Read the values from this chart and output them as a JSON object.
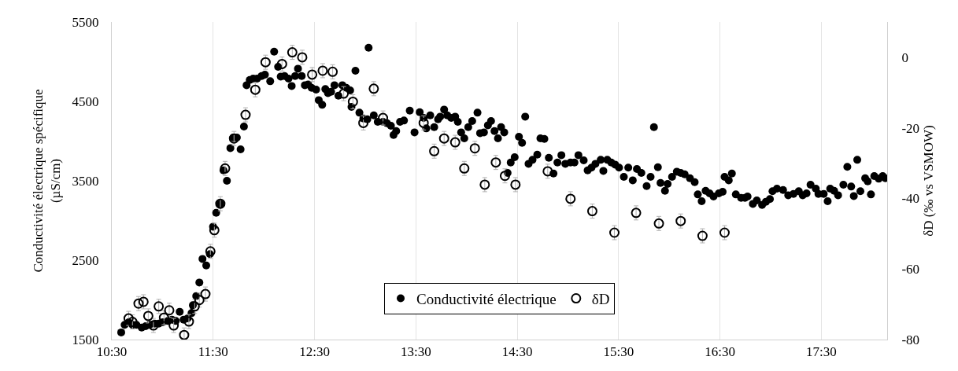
{
  "chart_data": {
    "type": "scatter",
    "ylabel": "Conductivité électrique spécifique\n(µS/cm)",
    "y2label": "δD (‰ vs VSMOW)",
    "xlim": [
      10.5,
      18.15
    ],
    "xticks": [
      {
        "value": 10.5,
        "label": "10:30"
      },
      {
        "value": 11.5,
        "label": "11:30"
      },
      {
        "value": 12.5,
        "label": "12:30"
      },
      {
        "value": 13.5,
        "label": "13:30"
      },
      {
        "value": 14.5,
        "label": "14:30"
      },
      {
        "value": 15.5,
        "label": "15:30"
      },
      {
        "value": 16.5,
        "label": "16:30"
      },
      {
        "value": 17.5,
        "label": "17:30"
      }
    ],
    "ylim": [
      1500,
      5500
    ],
    "yticks": [
      1500,
      2500,
      3500,
      4500,
      5500
    ],
    "y2lim": [
      -80,
      10
    ],
    "y2ticks": [
      -80,
      -60,
      -40,
      -20,
      0
    ],
    "grid": "x",
    "legend": "bottom",
    "series": [
      {
        "name": "Conductivité électrique",
        "color": "#000000",
        "marker": "circle",
        "x": [
          10.593,
          10.627,
          10.666,
          10.704,
          10.743,
          10.795,
          10.834,
          10.873,
          10.924,
          10.963,
          11.002,
          11.054,
          11.093,
          11.131,
          11.17,
          11.209,
          11.248,
          11.287,
          11.3,
          11.333,
          11.364,
          11.395,
          11.432,
          11.468,
          11.499,
          11.53,
          11.571,
          11.602,
          11.636,
          11.67,
          11.701,
          11.734,
          11.771,
          11.804,
          11.83,
          11.861,
          11.895,
          11.934,
          11.978,
          12.011,
          12.063,
          12.102,
          12.141,
          12.167,
          12.205,
          12.244,
          12.275,
          12.309,
          12.337,
          12.374,
          12.405,
          12.438,
          12.472,
          12.516,
          12.542,
          12.576,
          12.607,
          12.633,
          12.664,
          12.697,
          12.736,
          12.775,
          12.814,
          12.852,
          12.865,
          12.904,
          12.943,
          12.982,
          13.021,
          13.034,
          13.085,
          13.124,
          13.176,
          13.215,
          13.254,
          13.28,
          13.306,
          13.344,
          13.383,
          13.44,
          13.487,
          13.538,
          13.577,
          13.603,
          13.642,
          13.681,
          13.719,
          13.74,
          13.779,
          13.81,
          13.849,
          13.888,
          13.914,
          13.947,
          13.978,
          14.017,
          14.056,
          14.108,
          14.134,
          14.172,
          14.211,
          14.242,
          14.276,
          14.31,
          14.341,
          14.372,
          14.405,
          14.436,
          14.475,
          14.517,
          14.548,
          14.579,
          14.612,
          14.651,
          14.698,
          14.729,
          14.768,
          14.812,
          14.858,
          14.897,
          14.936,
          14.975,
          15.026,
          15.065,
          15.104,
          15.156,
          15.195,
          15.233,
          15.272,
          15.324,
          15.35,
          15.389,
          15.428,
          15.466,
          15.505,
          15.552,
          15.596,
          15.64,
          15.681,
          15.725,
          15.777,
          15.816,
          15.849,
          15.888,
          15.914,
          15.958,
          15.984,
          16.028,
          16.075,
          16.113,
          16.152,
          16.204,
          16.251,
          16.282,
          16.32,
          16.359,
          16.398,
          16.437,
          16.489,
          16.527,
          16.546,
          16.587,
          16.618,
          16.657,
          16.709,
          16.747,
          16.773,
          16.825,
          16.864,
          16.916,
          16.954,
          16.993,
          17.019,
          17.063,
          17.123,
          17.174,
          17.226,
          17.278,
          17.317,
          17.355,
          17.394,
          17.446,
          17.472,
          17.524,
          17.563,
          17.588,
          17.627,
          17.666,
          17.718,
          17.757,
          17.795,
          17.821,
          17.855,
          17.886,
          17.933,
          17.958,
          17.99,
          18.023,
          18.067,
          18.106,
          18.132
        ],
        "values": [
          1590,
          1685,
          1718,
          1685,
          1685,
          1652,
          1668,
          1685,
          1701,
          1701,
          1718,
          1734,
          1751,
          1734,
          1850,
          1751,
          1767,
          1833,
          1932,
          2048,
          2219,
          2516,
          2434,
          2576,
          2922,
          3097,
          3209,
          3632,
          3500,
          3912,
          4044,
          4044,
          3896,
          4183,
          4704,
          4770,
          4787,
          4787,
          4820,
          4836,
          4754,
          5127,
          4935,
          4813,
          4820,
          4787,
          4694,
          4820,
          4912,
          4820,
          4704,
          4714,
          4671,
          4648,
          4516,
          4457,
          4655,
          4605,
          4622,
          4704,
          4572,
          4704,
          4671,
          4638,
          4430,
          4886,
          4358,
          4285,
          4275,
          5176,
          4325,
          4242,
          4242,
          4226,
          4193,
          4077,
          4127,
          4242,
          4259,
          4384,
          4110,
          4364,
          4292,
          4160,
          4325,
          4176,
          4275,
          4308,
          4397,
          4325,
          4292,
          4308,
          4242,
          4110,
          4034,
          4176,
          4252,
          4358,
          4100,
          4110,
          4199,
          4252,
          4127,
          4034,
          4176,
          4110,
          3599,
          3731,
          3797,
          4054,
          3978,
          4308,
          3714,
          3764,
          3830,
          4034,
          4028,
          3790,
          3592,
          3731,
          3823,
          3714,
          3731,
          3731,
          3823,
          3757,
          3632,
          3665,
          3714,
          3764,
          3625,
          3764,
          3731,
          3704,
          3665,
          3549,
          3665,
          3506,
          3648,
          3599,
          3434,
          3549,
          4176,
          3671,
          3473,
          3374,
          3460,
          3549,
          3615,
          3599,
          3582,
          3533,
          3483,
          3328,
          3242,
          3374,
          3341,
          3302,
          3341,
          3361,
          3549,
          3506,
          3592,
          3328,
          3285,
          3285,
          3302,
          3209,
          3252,
          3196,
          3236,
          3269,
          3368,
          3401,
          3384,
          3318,
          3335,
          3368,
          3318,
          3341,
          3450,
          3401,
          3335,
          3335,
          3242,
          3401,
          3374,
          3318,
          3450,
          3675,
          3427,
          3308,
          3764,
          3368,
          3533,
          3493,
          3328,
          3559,
          3526,
          3559,
          3533
        ]
      },
      {
        "name": "δD",
        "color": "#000000",
        "marker": "circle-open",
        "axis": "y2",
        "x": [
          10.666,
          10.704,
          10.764,
          10.813,
          10.86,
          10.911,
          10.963,
          11.015,
          11.067,
          11.111,
          11.214,
          11.261,
          11.318,
          11.364,
          11.424,
          11.473,
          11.512,
          11.571,
          11.618,
          11.706,
          11.82,
          11.916,
          12.017,
          12.18,
          12.281,
          12.379,
          12.477,
          12.581,
          12.679,
          12.788,
          12.879,
          12.982,
          13.085,
          13.176,
          13.37,
          13.577,
          13.681,
          13.779,
          13.888,
          13.978,
          14.082,
          14.18,
          14.289,
          14.379,
          14.483,
          14.801,
          15.026,
          15.241,
          15.459,
          15.673,
          15.898,
          16.113,
          16.328,
          16.546
        ],
        "values": [
          -74.0,
          -75.0,
          -69.8,
          -69.3,
          -73.3,
          -76.0,
          -70.6,
          -73.8,
          -71.7,
          -76.0,
          -78.7,
          -74.9,
          -70.6,
          -68.8,
          -67.1,
          -55.0,
          -49.0,
          -41.5,
          -31.5,
          -23.0,
          -16.3,
          -9.2,
          -1.4,
          -1.9,
          1.4,
          0.0,
          -4.9,
          -3.8,
          -4.1,
          -10.3,
          -12.6,
          -18.6,
          -8.9,
          -17.2,
          null,
          -18.6,
          -26.6,
          -23.0,
          -24.1,
          -31.5,
          -25.8,
          -36.1,
          -29.8,
          -33.6,
          -36.1,
          -32.3,
          -40.1,
          -43.6,
          -49.7,
          -44.1,
          -47.1,
          -46.4,
          -50.6,
          -49.7
        ],
        "errors": [
          2,
          2,
          2,
          2,
          2,
          2,
          2,
          2,
          2,
          2,
          2,
          2,
          2,
          2,
          2,
          2,
          2,
          2,
          2,
          2,
          2,
          2,
          2,
          2,
          2,
          2,
          2,
          2,
          2,
          2,
          2,
          2,
          2,
          2,
          null,
          2,
          2,
          2,
          2,
          2,
          2,
          2,
          2,
          2,
          2,
          2,
          2,
          2,
          2,
          2,
          2,
          2,
          2,
          2
        ]
      }
    ]
  }
}
